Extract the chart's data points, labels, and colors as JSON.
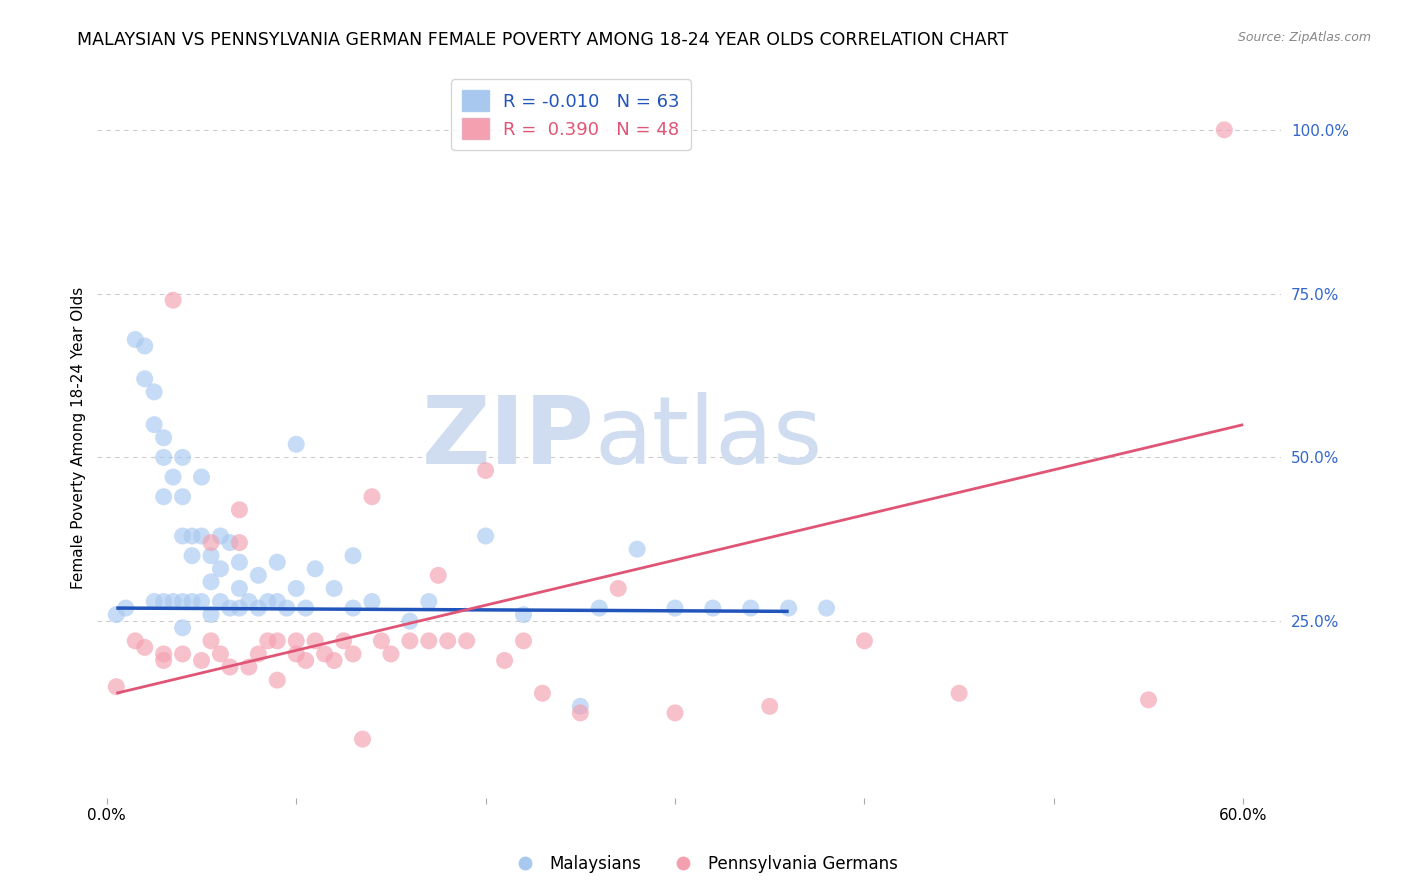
{
  "title": "MALAYSIAN VS PENNSYLVANIA GERMAN FEMALE POVERTY AMONG 18-24 YEAR OLDS CORRELATION CHART",
  "source": "Source: ZipAtlas.com",
  "ylabel": "Female Poverty Among 18-24 Year Olds",
  "ylim": [
    -0.02,
    1.08
  ],
  "xlim": [
    -0.005,
    0.62
  ],
  "blue_R": -0.01,
  "blue_N": 63,
  "pink_R": 0.39,
  "pink_N": 48,
  "blue_color": "#A8C8F0",
  "pink_color": "#F4A0B0",
  "blue_line_color": "#2255BB",
  "pink_line_color": "#E05575",
  "watermark_zip": "ZIP",
  "watermark_atlas": "atlas",
  "watermark_color": "#D0DCF0",
  "legend_label_blue": "Malaysians",
  "legend_label_pink": "Pennsylvania Germans",
  "blue_scatter_x": [
    0.005,
    0.01,
    0.015,
    0.02,
    0.02,
    0.025,
    0.025,
    0.025,
    0.03,
    0.03,
    0.03,
    0.03,
    0.035,
    0.035,
    0.04,
    0.04,
    0.04,
    0.04,
    0.04,
    0.045,
    0.045,
    0.045,
    0.05,
    0.05,
    0.05,
    0.055,
    0.055,
    0.055,
    0.06,
    0.06,
    0.06,
    0.065,
    0.065,
    0.07,
    0.07,
    0.07,
    0.075,
    0.08,
    0.08,
    0.085,
    0.09,
    0.09,
    0.095,
    0.1,
    0.1,
    0.105,
    0.11,
    0.12,
    0.13,
    0.13,
    0.14,
    0.16,
    0.17,
    0.2,
    0.22,
    0.25,
    0.26,
    0.28,
    0.3,
    0.32,
    0.34,
    0.36,
    0.38
  ],
  "blue_scatter_y": [
    0.26,
    0.27,
    0.68,
    0.67,
    0.62,
    0.6,
    0.55,
    0.28,
    0.53,
    0.5,
    0.44,
    0.28,
    0.47,
    0.28,
    0.5,
    0.44,
    0.38,
    0.28,
    0.24,
    0.38,
    0.35,
    0.28,
    0.47,
    0.38,
    0.28,
    0.35,
    0.31,
    0.26,
    0.38,
    0.33,
    0.28,
    0.37,
    0.27,
    0.34,
    0.3,
    0.27,
    0.28,
    0.32,
    0.27,
    0.28,
    0.34,
    0.28,
    0.27,
    0.52,
    0.3,
    0.27,
    0.33,
    0.3,
    0.35,
    0.27,
    0.28,
    0.25,
    0.28,
    0.38,
    0.26,
    0.12,
    0.27,
    0.36,
    0.27,
    0.27,
    0.27,
    0.27,
    0.27
  ],
  "pink_scatter_x": [
    0.005,
    0.015,
    0.02,
    0.03,
    0.03,
    0.035,
    0.04,
    0.05,
    0.055,
    0.055,
    0.06,
    0.065,
    0.07,
    0.07,
    0.075,
    0.08,
    0.085,
    0.09,
    0.09,
    0.1,
    0.1,
    0.105,
    0.11,
    0.115,
    0.12,
    0.125,
    0.13,
    0.135,
    0.14,
    0.145,
    0.15,
    0.16,
    0.17,
    0.175,
    0.18,
    0.19,
    0.2,
    0.21,
    0.22,
    0.23,
    0.25,
    0.27,
    0.3,
    0.35,
    0.4,
    0.45,
    0.55,
    0.59
  ],
  "pink_scatter_y": [
    0.15,
    0.22,
    0.21,
    0.2,
    0.19,
    0.74,
    0.2,
    0.19,
    0.37,
    0.22,
    0.2,
    0.18,
    0.42,
    0.37,
    0.18,
    0.2,
    0.22,
    0.22,
    0.16,
    0.22,
    0.2,
    0.19,
    0.22,
    0.2,
    0.19,
    0.22,
    0.2,
    0.07,
    0.44,
    0.22,
    0.2,
    0.22,
    0.22,
    0.32,
    0.22,
    0.22,
    0.48,
    0.19,
    0.22,
    0.14,
    0.11,
    0.3,
    0.11,
    0.12,
    0.22,
    0.14,
    0.13,
    1.0
  ],
  "blue_line_x_start": 0.005,
  "blue_line_x_end": 0.36,
  "blue_line_y_start": 0.27,
  "blue_line_y_end": 0.265,
  "pink_line_x_start": 0.005,
  "pink_line_x_end": 0.6,
  "pink_line_y_start": 0.14,
  "pink_line_y_end": 0.55,
  "grid_color": "#CCCCCC",
  "grid_dashes": [
    4,
    4
  ],
  "background_color": "#FFFFFF",
  "title_fontsize": 12.5,
  "axis_label_fontsize": 11,
  "tick_fontsize": 11,
  "right_tick_color": "#3366CC",
  "source_color": "#888888"
}
